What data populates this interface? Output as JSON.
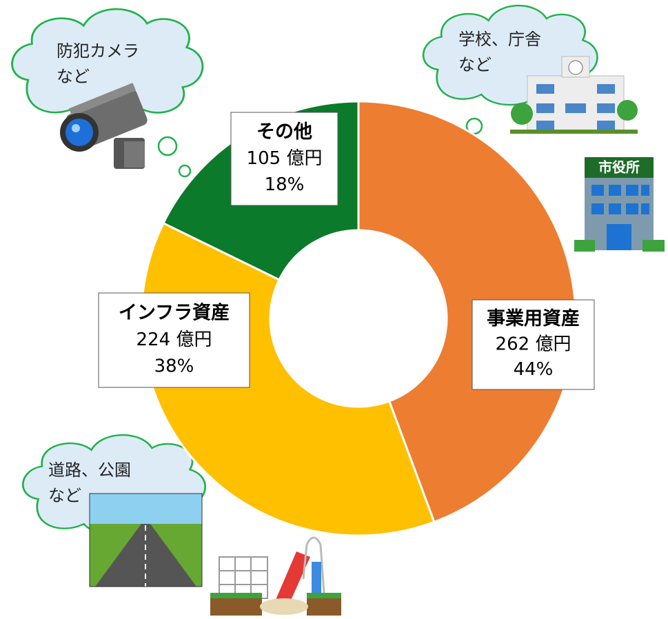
{
  "chart_data": {
    "type": "donut",
    "categories": [
      "事業用資産",
      "インフラ資産",
      "その他"
    ],
    "values": [
      262,
      224,
      105
    ],
    "value_labels": [
      "262 億円",
      "224 億円",
      "105 億円"
    ],
    "percentages": [
      44,
      38,
      18
    ],
    "percentage_labels": [
      "44%",
      "38%",
      "18%"
    ],
    "colors": [
      "#ED7D31",
      "#FFC000",
      "#0B7A2A"
    ],
    "annotations": [
      {
        "line1": "学校、庁舎",
        "line2": "など"
      },
      {
        "line1": "道路、公園",
        "line2": "など"
      },
      {
        "line1": "防犯カメラ",
        "line2": "など"
      }
    ],
    "sign": "市役所"
  }
}
